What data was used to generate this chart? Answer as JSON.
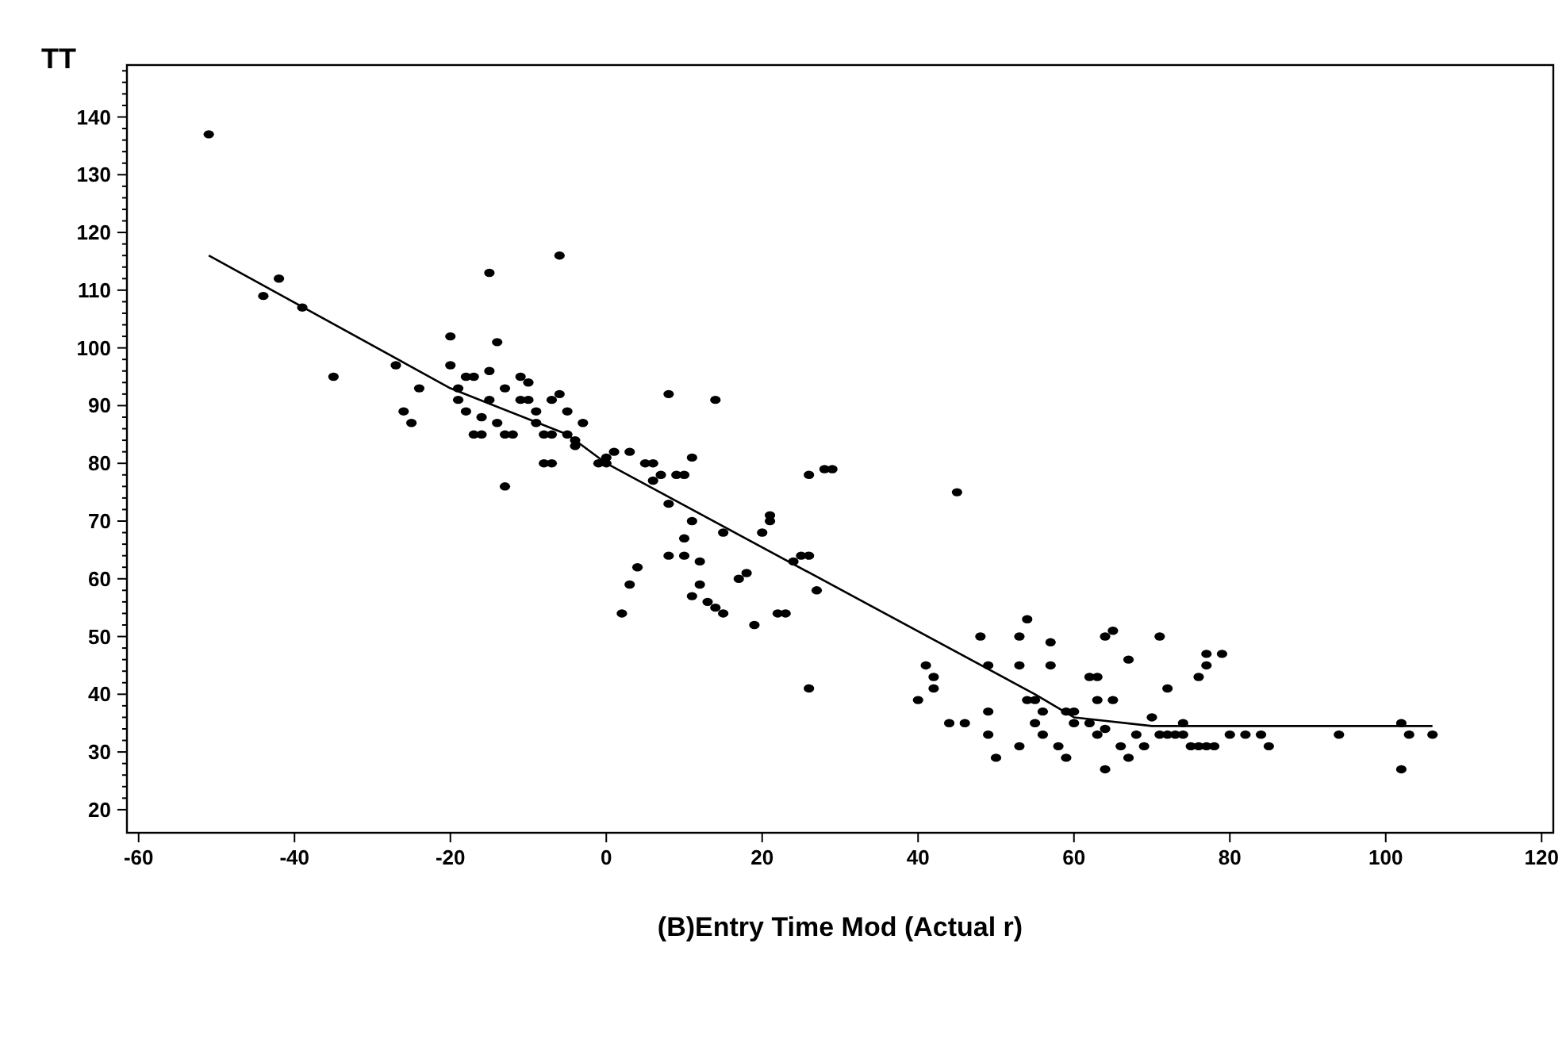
{
  "chart_data": {
    "type": "scatter",
    "xlabel": "(B)Entry Time Mod (Actual r)",
    "ylabel": "TT",
    "xlim": [
      -61.5,
      121.5
    ],
    "ylim": [
      16,
      149
    ],
    "xticks": [
      -60,
      -40,
      -20,
      0,
      20,
      40,
      60,
      80,
      100,
      120
    ],
    "yticks": [
      20,
      {
        "value": 22,
        "label": null
      },
      {
        "value": 24,
        "label": null
      },
      {
        "value": 26,
        "label": null
      },
      {
        "value": 28,
        "label": null
      },
      30,
      {
        "value": 32,
        "label": null
      },
      {
        "value": 34,
        "label": null
      },
      {
        "value": 36,
        "label": null
      },
      {
        "value": 38,
        "label": null
      },
      40,
      {
        "value": 42,
        "label": null
      },
      {
        "value": 44,
        "label": null
      },
      {
        "value": 46,
        "label": null
      },
      {
        "value": 48,
        "label": null
      },
      50,
      {
        "value": 52,
        "label": null
      },
      {
        "value": 54,
        "label": null
      },
      {
        "value": 56,
        "label": null
      },
      {
        "value": 58,
        "label": null
      },
      60,
      {
        "value": 62,
        "label": null
      },
      {
        "value": 64,
        "label": null
      },
      {
        "value": 66,
        "label": null
      },
      {
        "value": 68,
        "label": null
      },
      70,
      {
        "value": 72,
        "label": null
      },
      {
        "value": 74,
        "label": null
      },
      {
        "value": 76,
        "label": null
      },
      {
        "value": 78,
        "label": null
      },
      80,
      {
        "value": 82,
        "label": null
      },
      {
        "value": 84,
        "label": null
      },
      {
        "value": 86,
        "label": null
      },
      {
        "value": 88,
        "label": null
      },
      90,
      {
        "value": 92,
        "label": null
      },
      {
        "value": 94,
        "label": null
      },
      {
        "value": 96,
        "label": null
      },
      {
        "value": 98,
        "label": null
      },
      100,
      {
        "value": 102,
        "label": null
      },
      {
        "value": 104,
        "label": null
      },
      {
        "value": 106,
        "label": null
      },
      {
        "value": 108,
        "label": null
      },
      110,
      {
        "value": 112,
        "label": null
      },
      {
        "value": 114,
        "label": null
      },
      {
        "value": 116,
        "label": null
      },
      {
        "value": 118,
        "label": null
      },
      120,
      {
        "value": 122,
        "label": null
      },
      {
        "value": 124,
        "label": null
      },
      {
        "value": 126,
        "label": null
      },
      {
        "value": 128,
        "label": null
      },
      130,
      {
        "value": 132,
        "label": null
      },
      {
        "value": 134,
        "label": null
      },
      {
        "value": 136,
        "label": null
      },
      {
        "value": 138,
        "label": null
      },
      140,
      {
        "value": 142,
        "label": null
      },
      {
        "value": 144,
        "label": null
      },
      {
        "value": 146,
        "label": null
      },
      {
        "value": 148,
        "label": null
      }
    ],
    "grid": false,
    "marker": "circle",
    "series": [
      {
        "color": "#000000",
        "x": [
          -51,
          -44,
          -42,
          -39,
          -35,
          -27,
          -26,
          -25,
          -24,
          -20,
          -20,
          -19,
          -19,
          -18,
          -18,
          -17,
          -17,
          -16,
          -16,
          -15,
          -15,
          -15,
          -14,
          -14,
          -13,
          -13,
          -13,
          -12,
          -11,
          -11,
          -10,
          -10,
          -9,
          -9,
          -8,
          -8,
          -7,
          -7,
          -7,
          -6,
          -6,
          -5,
          -5,
          -4,
          -4,
          -3,
          -1,
          0,
          0,
          1,
          3,
          2,
          3,
          4,
          5,
          6,
          6,
          7,
          8,
          8,
          8,
          9,
          10,
          10,
          10,
          11,
          11,
          11,
          12,
          12,
          13,
          14,
          14,
          15,
          15,
          17,
          18,
          19,
          20,
          21,
          21,
          22,
          23,
          24,
          25,
          26,
          26,
          26,
          27,
          28,
          29,
          40,
          41,
          42,
          42,
          44,
          45,
          46,
          48,
          49,
          49,
          49,
          50,
          53,
          53,
          53,
          54,
          54,
          55,
          55,
          56,
          56,
          57,
          57,
          58,
          59,
          59,
          60,
          60,
          62,
          62,
          63,
          63,
          63,
          64,
          64,
          64,
          65,
          65,
          66,
          67,
          67,
          68,
          69,
          70,
          71,
          71,
          72,
          72,
          73,
          74,
          74,
          75,
          76,
          76,
          77,
          77,
          77,
          78,
          79,
          80,
          82,
          84,
          85,
          94,
          102,
          102,
          103,
          106
        ],
        "values": [
          137,
          109,
          112,
          107,
          95,
          97,
          89,
          87,
          93,
          102,
          97,
          93,
          91,
          89,
          95,
          95,
          85,
          85,
          88,
          96,
          113,
          91,
          87,
          101,
          93,
          85,
          76,
          85,
          95,
          91,
          94,
          91,
          89,
          87,
          85,
          80,
          85,
          91,
          80,
          116,
          92,
          89,
          85,
          83,
          84,
          87,
          80,
          81,
          80,
          82,
          82,
          54,
          59,
          62,
          80,
          80,
          77,
          78,
          92,
          73,
          64,
          78,
          67,
          64,
          78,
          81,
          70,
          57,
          59,
          63,
          56,
          91,
          55,
          68,
          54,
          60,
          61,
          52,
          68,
          70,
          71,
          54,
          54,
          63,
          64,
          78,
          64,
          41,
          58,
          79,
          79,
          39,
          45,
          41,
          43,
          35,
          75,
          35,
          50,
          45,
          33,
          37,
          29,
          50,
          45,
          31,
          53,
          39,
          35,
          39,
          33,
          37,
          49,
          45,
          31,
          37,
          29,
          35,
          37,
          43,
          35,
          43,
          33,
          39,
          27,
          50,
          34,
          39,
          51,
          31,
          46,
          29,
          33,
          31,
          36,
          50,
          33,
          41,
          33,
          33,
          35,
          33,
          31,
          31,
          43,
          47,
          45,
          31,
          31,
          47,
          33,
          33,
          33,
          31,
          33,
          35,
          27,
          33,
          33
        ]
      },
      {
        "type": "line",
        "color": "#000000",
        "marker": "none",
        "line_style": "solid",
        "x": [
          -51,
          -20,
          -5,
          0,
          55,
          60,
          70,
          106
        ],
        "values": [
          116,
          93,
          85,
          80,
          40,
          36,
          34.5,
          34.5
        ]
      }
    ]
  }
}
